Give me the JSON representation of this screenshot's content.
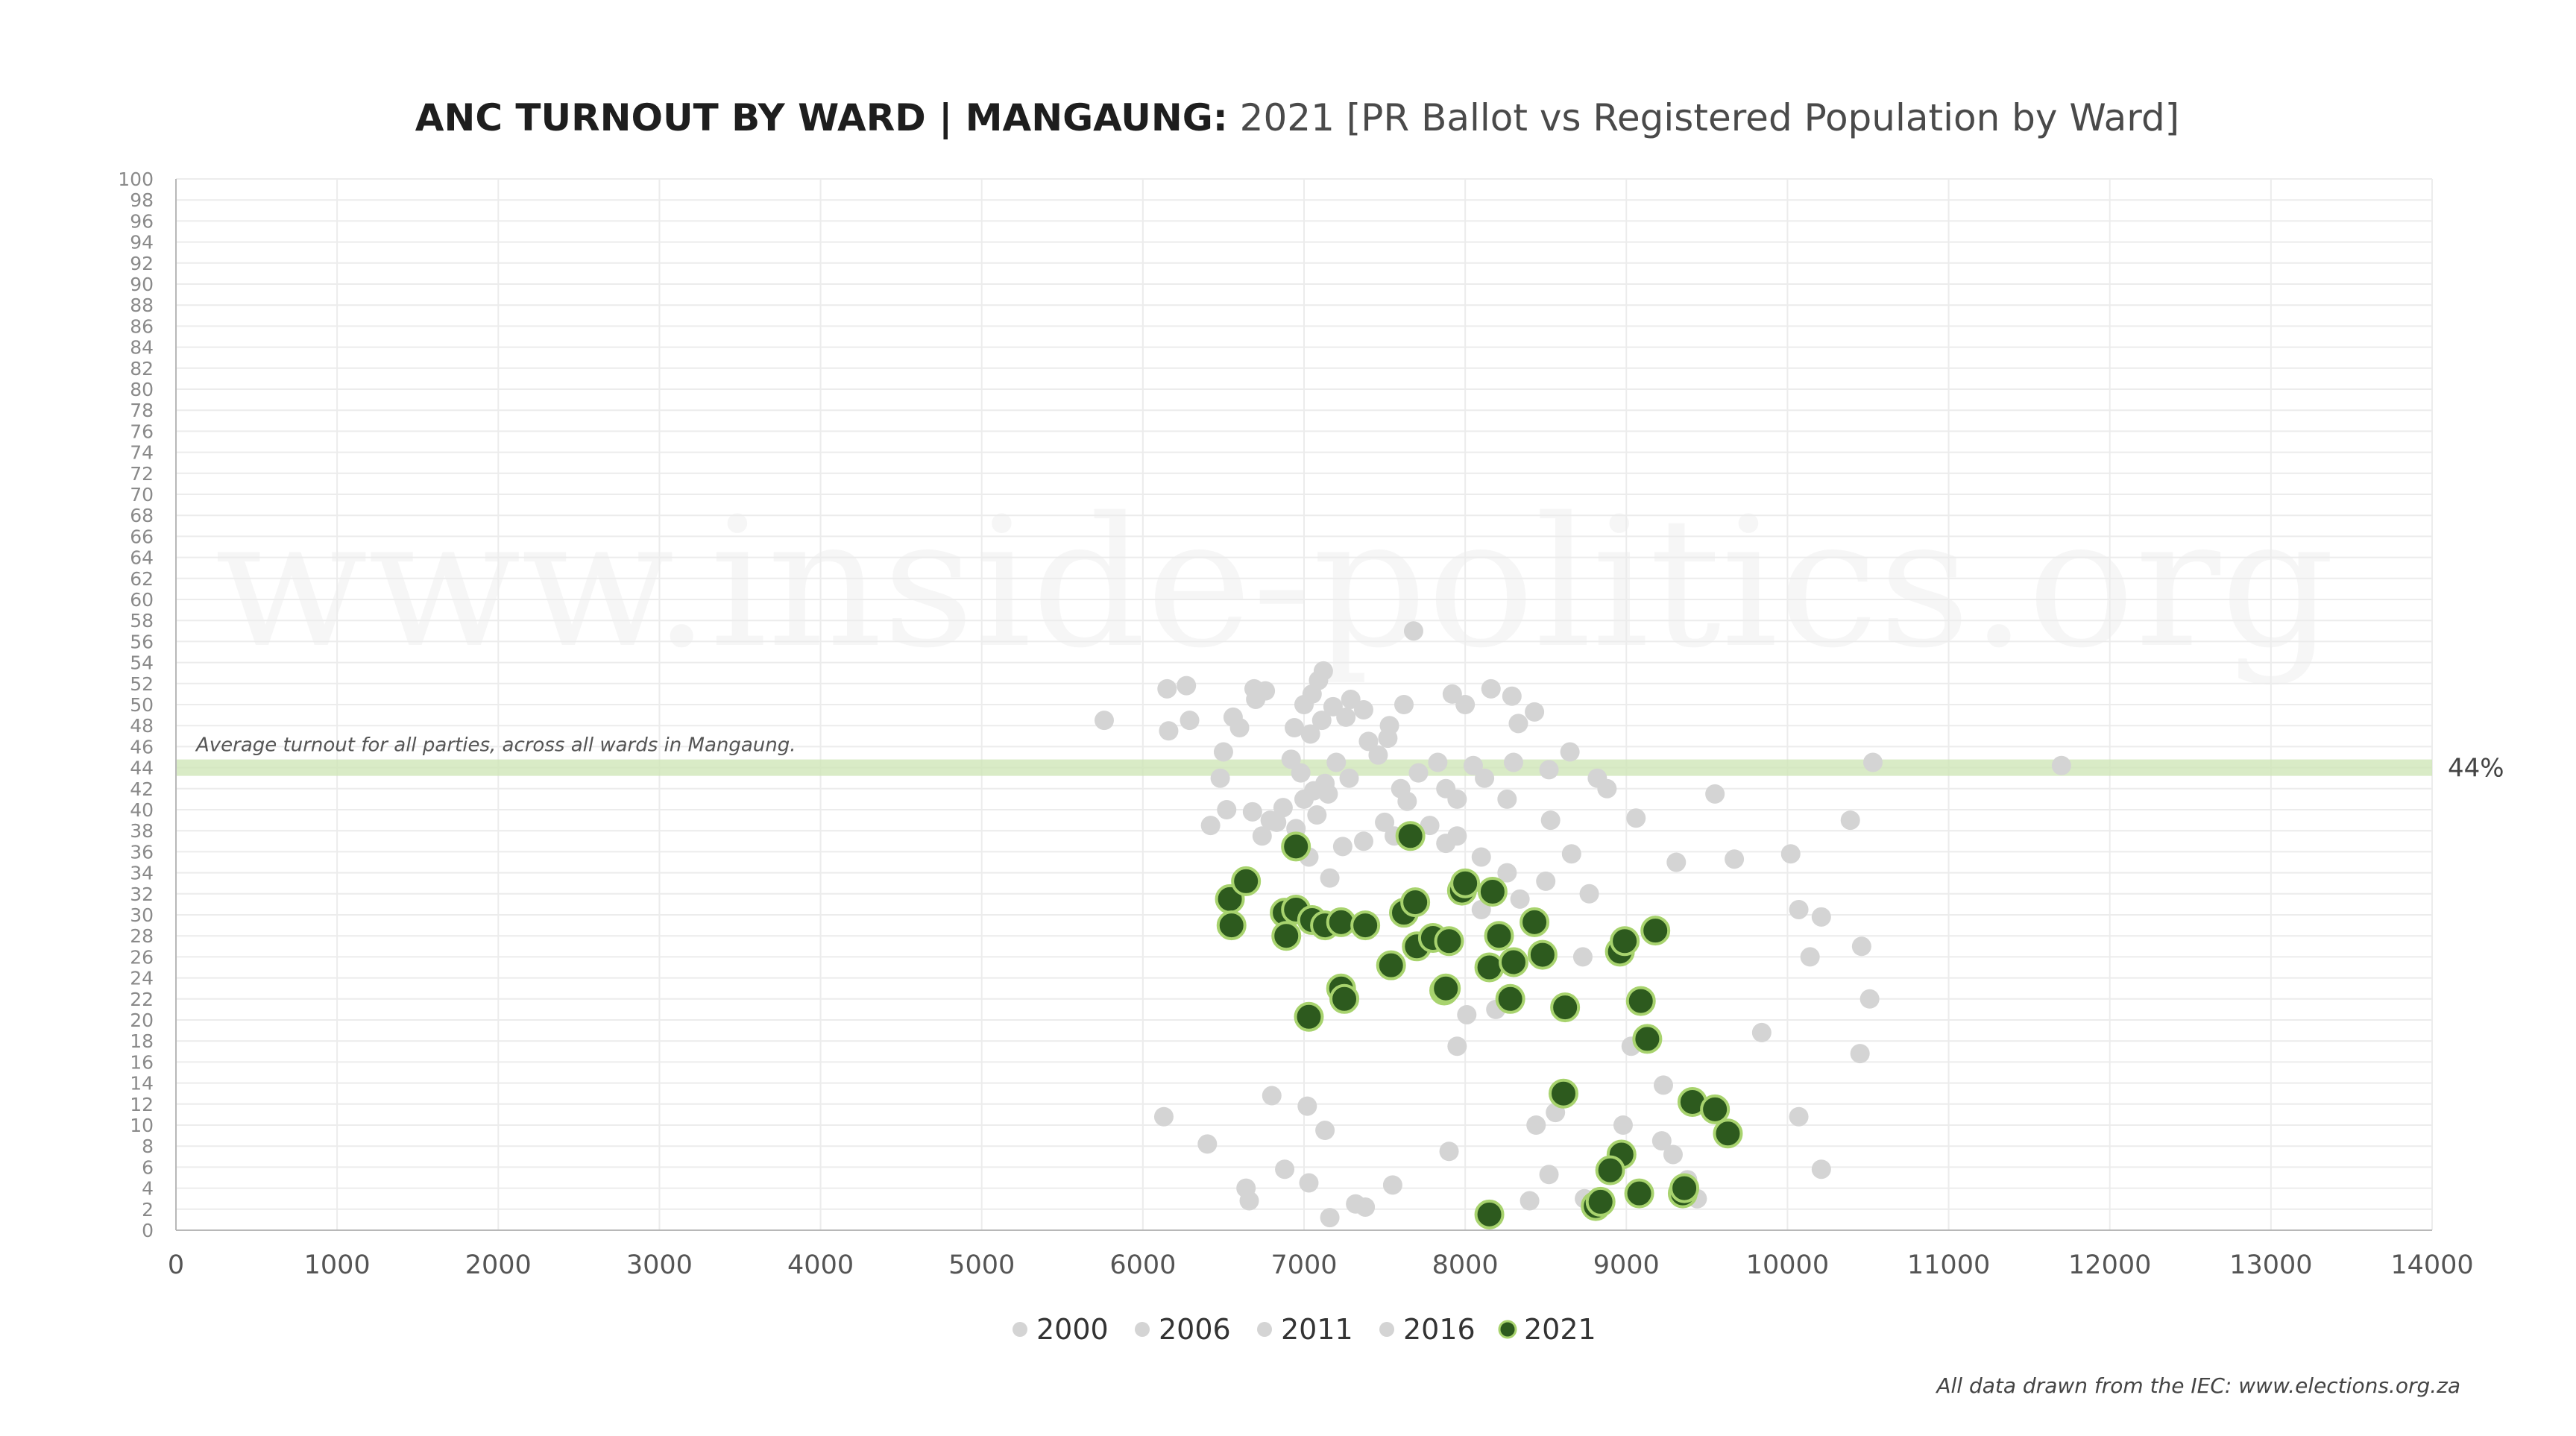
{
  "chart_data": {
    "type": "scatter",
    "title_bold": "ANC TURNOUT BY WARD | MANGAUNG:",
    "title_rest": " 2021 [PR Ballot vs Registered Population by Ward]",
    "xlabel": "",
    "ylabel": "",
    "xlim": [
      0,
      14000
    ],
    "ylim": [
      0,
      100
    ],
    "x_ticks": [
      0,
      1000,
      2000,
      3000,
      4000,
      5000,
      6000,
      7000,
      8000,
      9000,
      10000,
      11000,
      12000,
      13000,
      14000
    ],
    "y_ticks": [
      0,
      2,
      4,
      6,
      8,
      10,
      12,
      14,
      16,
      18,
      20,
      22,
      24,
      26,
      28,
      30,
      32,
      34,
      36,
      38,
      40,
      42,
      44,
      46,
      48,
      50,
      52,
      54,
      56,
      58,
      60,
      62,
      64,
      66,
      68,
      70,
      72,
      74,
      76,
      78,
      80,
      82,
      84,
      86,
      88,
      90,
      92,
      94,
      96,
      98,
      100
    ],
    "grid": true,
    "legend_position": "bottom",
    "average_line": {
      "y": 44,
      "label": "Average turnout for all parties, across all wards in Mangaung.",
      "value_label": "44%",
      "color": "#cfe6b8"
    },
    "watermark": "www.inside-politics.org",
    "credit": "All data drawn from the IEC: www.elections.org.za",
    "series": [
      {
        "name": "2000",
        "color": "#d4d4d4",
        "points": [
          [
            5760,
            48.5
          ],
          [
            6150,
            51.5
          ],
          [
            6270,
            51.8
          ],
          [
            6290,
            48.5
          ],
          [
            6160,
            47.5
          ],
          [
            6560,
            48.8
          ],
          [
            6600,
            47.8
          ],
          [
            6690,
            51.5
          ],
          [
            6760,
            51.3
          ],
          [
            6700,
            50.5
          ],
          [
            6940,
            47.8
          ],
          [
            7000,
            50.0
          ],
          [
            7050,
            51.0
          ],
          [
            7090,
            52.3
          ],
          [
            7120,
            53.2
          ],
          [
            7180,
            49.8
          ],
          [
            7290,
            50.5
          ],
          [
            7370,
            49.5
          ],
          [
            7040,
            47.2
          ],
          [
            7110,
            48.5
          ],
          [
            7620,
            50.0
          ],
          [
            7530,
            48.0
          ],
          [
            7920,
            51.0
          ],
          [
            8000,
            50.0
          ],
          [
            8160,
            51.5
          ],
          [
            8290,
            50.8
          ],
          [
            8330,
            48.2
          ],
          [
            8430,
            49.3
          ],
          [
            7680,
            57.0
          ],
          [
            7260,
            48.8
          ]
        ]
      },
      {
        "name": "2006",
        "color": "#d4d4d4",
        "points": [
          [
            6500,
            45.5
          ],
          [
            6480,
            43.0
          ],
          [
            6520,
            40.0
          ],
          [
            6420,
            38.5
          ],
          [
            6680,
            39.8
          ],
          [
            6790,
            39.0
          ],
          [
            6870,
            40.2
          ],
          [
            6920,
            44.8
          ],
          [
            6980,
            43.5
          ],
          [
            7060,
            41.8
          ],
          [
            7130,
            42.5
          ],
          [
            7200,
            44.5
          ],
          [
            7280,
            43.0
          ],
          [
            7400,
            46.5
          ],
          [
            7460,
            45.2
          ],
          [
            7520,
            46.8
          ],
          [
            7600,
            42.0
          ],
          [
            7710,
            43.5
          ],
          [
            7830,
            44.5
          ],
          [
            7880,
            42.0
          ],
          [
            7950,
            41.0
          ],
          [
            8050,
            44.2
          ],
          [
            8120,
            43.0
          ],
          [
            8260,
            41.0
          ],
          [
            8300,
            44.5
          ],
          [
            8520,
            43.8
          ],
          [
            8650,
            45.5
          ],
          [
            8820,
            43.0
          ],
          [
            8880,
            42.0
          ],
          [
            10530,
            44.5
          ]
        ]
      },
      {
        "name": "2011",
        "color": "#d4d4d4",
        "points": [
          [
            6740,
            37.5
          ],
          [
            6830,
            38.8
          ],
          [
            6950,
            38.2
          ],
          [
            7080,
            39.5
          ],
          [
            7000,
            41.0
          ],
          [
            7150,
            41.5
          ],
          [
            7030,
            35.5
          ],
          [
            7160,
            33.5
          ],
          [
            7240,
            36.5
          ],
          [
            7370,
            37.0
          ],
          [
            7500,
            38.8
          ],
          [
            7560,
            37.5
          ],
          [
            7640,
            40.8
          ],
          [
            7780,
            38.5
          ],
          [
            7880,
            36.8
          ],
          [
            7950,
            37.5
          ],
          [
            8100,
            35.5
          ],
          [
            8260,
            34.0
          ],
          [
            8340,
            31.5
          ],
          [
            8500,
            33.2
          ],
          [
            8530,
            39.0
          ],
          [
            8660,
            35.8
          ],
          [
            8770,
            32.0
          ],
          [
            9060,
            39.2
          ],
          [
            9310,
            35.0
          ],
          [
            9550,
            41.5
          ],
          [
            9670,
            35.3
          ],
          [
            10020,
            35.8
          ],
          [
            10390,
            39.0
          ],
          [
            11700,
            44.2
          ]
        ]
      },
      {
        "name": "2016",
        "color": "#d4d4d4",
        "points": [
          [
            6130,
            10.8
          ],
          [
            6400,
            8.2
          ],
          [
            6800,
            12.8
          ],
          [
            7020,
            11.8
          ],
          [
            7130,
            9.5
          ],
          [
            6640,
            4.0
          ],
          [
            6660,
            2.8
          ],
          [
            6880,
            5.8
          ],
          [
            7030,
            4.5
          ],
          [
            7160,
            1.2
          ],
          [
            7320,
            2.5
          ],
          [
            7380,
            2.2
          ],
          [
            7550,
            4.3
          ],
          [
            7900,
            7.5
          ],
          [
            8100,
            30.5
          ],
          [
            8190,
            21.0
          ],
          [
            8400,
            2.8
          ],
          [
            8440,
            10.0
          ],
          [
            8520,
            5.3
          ],
          [
            8560,
            11.2
          ],
          [
            8730,
            26.0
          ],
          [
            8740,
            3.0
          ],
          [
            8980,
            10.0
          ],
          [
            9030,
            17.5
          ],
          [
            9230,
            13.8
          ],
          [
            9220,
            8.5
          ],
          [
            9290,
            7.2
          ],
          [
            9380,
            4.8
          ],
          [
            9440,
            3.0
          ],
          [
            9840,
            18.8
          ],
          [
            10070,
            10.8
          ],
          [
            10210,
            5.8
          ],
          [
            10070,
            30.5
          ],
          [
            10210,
            29.8
          ],
          [
            10140,
            26.0
          ],
          [
            10460,
            27.0
          ],
          [
            10510,
            22.0
          ],
          [
            10450,
            16.8
          ],
          [
            7950,
            17.5
          ],
          [
            8010,
            20.5
          ]
        ]
      },
      {
        "name": "2021",
        "color": "#2d5a1e",
        "edge": "#a8d36e",
        "points": [
          [
            6540,
            31.5
          ],
          [
            6550,
            29.0
          ],
          [
            6640,
            33.2
          ],
          [
            6950,
            36.5
          ],
          [
            6880,
            30.2
          ],
          [
            6890,
            28.0
          ],
          [
            6950,
            30.5
          ],
          [
            7050,
            29.5
          ],
          [
            7130,
            29.0
          ],
          [
            7230,
            29.3
          ],
          [
            7380,
            29.0
          ],
          [
            7230,
            23.0
          ],
          [
            7250,
            22.0
          ],
          [
            7030,
            20.3
          ],
          [
            7540,
            25.2
          ],
          [
            7620,
            30.2
          ],
          [
            7690,
            31.2
          ],
          [
            7700,
            27.0
          ],
          [
            7800,
            27.8
          ],
          [
            7900,
            27.5
          ],
          [
            7660,
            37.5
          ],
          [
            7870,
            22.8
          ],
          [
            7880,
            23.0
          ],
          [
            7980,
            32.3
          ],
          [
            8000,
            33.0
          ],
          [
            8170,
            32.2
          ],
          [
            8150,
            25.0
          ],
          [
            8210,
            28.0
          ],
          [
            8280,
            22.0
          ],
          [
            8300,
            25.5
          ],
          [
            8430,
            29.3
          ],
          [
            8480,
            26.2
          ],
          [
            8620,
            21.2
          ],
          [
            8610,
            13.0
          ],
          [
            8960,
            26.5
          ],
          [
            8990,
            27.5
          ],
          [
            9090,
            21.8
          ],
          [
            9130,
            18.2
          ],
          [
            9180,
            28.5
          ],
          [
            9410,
            12.2
          ],
          [
            9550,
            11.5
          ],
          [
            9630,
            9.2
          ],
          [
            8970,
            7.2
          ],
          [
            8900,
            5.7
          ],
          [
            9080,
            3.5
          ],
          [
            9350,
            3.5
          ],
          [
            9360,
            4.0
          ],
          [
            8810,
            2.3
          ],
          [
            8840,
            2.7
          ],
          [
            8150,
            1.5
          ]
        ]
      }
    ]
  }
}
